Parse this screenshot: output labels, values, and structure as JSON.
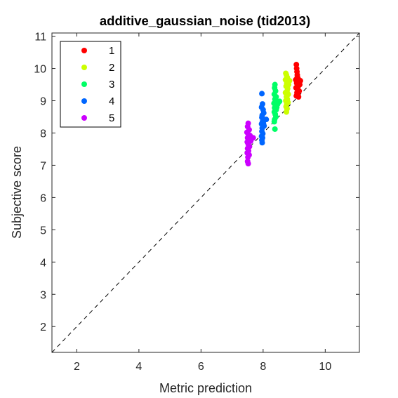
{
  "chart_data": {
    "type": "scatter",
    "title": "additive_gaussian_noise (tid2013)",
    "xlabel": "Metric prediction",
    "ylabel": "Subjective score",
    "xlim": [
      1.2,
      11.1
    ],
    "ylim": [
      1.2,
      11.1
    ],
    "xticks": [
      "2",
      "4",
      "6",
      "8",
      "10"
    ],
    "yticks": [
      "2",
      "3",
      "4",
      "5",
      "6",
      "7",
      "8",
      "9",
      "10",
      "11"
    ],
    "xtick_values": [
      2,
      4,
      6,
      8,
      10
    ],
    "ytick_values": [
      2,
      3,
      4,
      5,
      6,
      7,
      8,
      9,
      10,
      11
    ],
    "reference_line": "y = x (dashed)",
    "legend_position": "top-left",
    "grid": false,
    "series": [
      {
        "name": "1",
        "color": "#ff0000",
        "points": [
          [
            9.07,
            10.12
          ],
          [
            9.08,
            10.0
          ],
          [
            9.09,
            9.9
          ],
          [
            9.1,
            9.8
          ],
          [
            9.12,
            9.7
          ],
          [
            9.05,
            9.65
          ],
          [
            9.15,
            9.6
          ],
          [
            9.2,
            9.62
          ],
          [
            9.08,
            9.55
          ],
          [
            9.1,
            9.5
          ],
          [
            9.13,
            9.45
          ],
          [
            9.06,
            9.4
          ],
          [
            9.11,
            9.35
          ],
          [
            9.16,
            9.3
          ],
          [
            9.09,
            9.25
          ],
          [
            9.12,
            9.2
          ],
          [
            9.07,
            9.15
          ],
          [
            9.14,
            9.12
          ],
          [
            9.1,
            9.72
          ],
          [
            9.18,
            9.5
          ]
        ]
      },
      {
        "name": "2",
        "color": "#ccff00",
        "points": [
          [
            8.73,
            9.85
          ],
          [
            8.75,
            9.8
          ],
          [
            8.78,
            9.72
          ],
          [
            8.72,
            9.65
          ],
          [
            8.85,
            9.62
          ],
          [
            8.76,
            9.55
          ],
          [
            8.82,
            9.5
          ],
          [
            8.74,
            9.45
          ],
          [
            8.79,
            9.38
          ],
          [
            8.77,
            9.3
          ],
          [
            8.72,
            9.25
          ],
          [
            8.81,
            9.2
          ],
          [
            8.75,
            9.12
          ],
          [
            8.78,
            9.05
          ],
          [
            8.73,
            9.0
          ],
          [
            8.8,
            8.95
          ],
          [
            8.76,
            8.9
          ],
          [
            8.74,
            8.82
          ],
          [
            8.77,
            8.75
          ],
          [
            8.75,
            8.65
          ]
        ]
      },
      {
        "name": "3",
        "color": "#00ff66",
        "points": [
          [
            8.38,
            9.5
          ],
          [
            8.37,
            9.4
          ],
          [
            8.4,
            9.3
          ],
          [
            8.36,
            9.2
          ],
          [
            8.42,
            9.12
          ],
          [
            8.38,
            9.05
          ],
          [
            8.45,
            8.98
          ],
          [
            8.53,
            8.98
          ],
          [
            8.35,
            8.92
          ],
          [
            8.4,
            8.85
          ],
          [
            8.37,
            8.78
          ],
          [
            8.42,
            8.72
          ],
          [
            8.36,
            8.65
          ],
          [
            8.39,
            8.58
          ],
          [
            8.41,
            8.5
          ],
          [
            8.37,
            8.42
          ],
          [
            8.36,
            8.35
          ],
          [
            8.38,
            8.12
          ],
          [
            8.47,
            8.9
          ],
          [
            8.44,
            8.8
          ]
        ]
      },
      {
        "name": "4",
        "color": "#0066ff",
        "points": [
          [
            7.96,
            9.22
          ],
          [
            7.98,
            8.9
          ],
          [
            7.95,
            8.8
          ],
          [
            8.0,
            8.72
          ],
          [
            8.02,
            8.62
          ],
          [
            7.97,
            8.55
          ],
          [
            7.96,
            8.48
          ],
          [
            8.0,
            8.42
          ],
          [
            8.1,
            8.42
          ],
          [
            7.98,
            8.35
          ],
          [
            7.95,
            8.28
          ],
          [
            8.03,
            8.22
          ],
          [
            7.97,
            8.15
          ],
          [
            7.96,
            8.05
          ],
          [
            7.99,
            7.98
          ],
          [
            7.95,
            7.9
          ],
          [
            7.98,
            7.85
          ],
          [
            7.96,
            7.78
          ],
          [
            7.97,
            7.7
          ],
          [
            8.01,
            8.3
          ]
        ]
      },
      {
        "name": "5",
        "color": "#cc00ff",
        "points": [
          [
            7.52,
            8.3
          ],
          [
            7.5,
            8.2
          ],
          [
            7.55,
            8.1
          ],
          [
            7.48,
            8.02
          ],
          [
            7.53,
            7.95
          ],
          [
            7.58,
            7.92
          ],
          [
            7.68,
            7.85
          ],
          [
            7.5,
            7.85
          ],
          [
            7.54,
            7.78
          ],
          [
            7.49,
            7.72
          ],
          [
            7.52,
            7.65
          ],
          [
            7.56,
            7.58
          ],
          [
            7.5,
            7.52
          ],
          [
            7.53,
            7.45
          ],
          [
            7.49,
            7.38
          ],
          [
            7.55,
            7.32
          ],
          [
            7.51,
            7.25
          ],
          [
            7.5,
            7.12
          ],
          [
            7.52,
            7.05
          ],
          [
            7.6,
            7.75
          ]
        ]
      }
    ]
  }
}
